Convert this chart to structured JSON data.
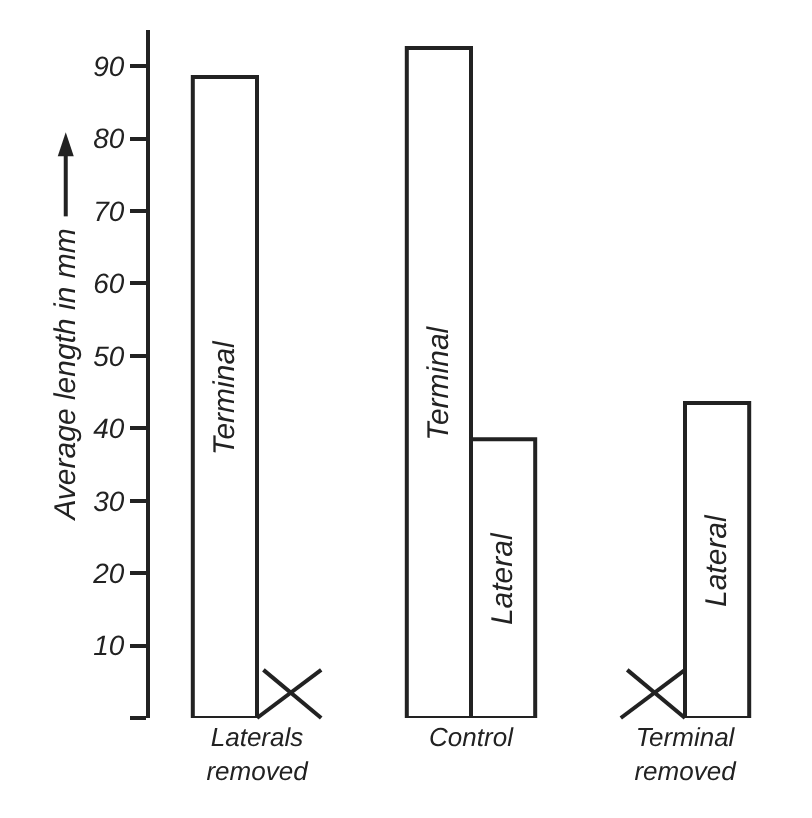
{
  "chart_data": {
    "type": "bar",
    "ylabel": "Average length in mm",
    "categories": [
      "Laterals\nremoved",
      "Control",
      "Terminal\nremoved"
    ],
    "series": [
      {
        "name": "Terminal",
        "color": "#ffffff",
        "values": [
          88.5,
          92.5,
          null
        ]
      },
      {
        "name": "Lateral",
        "color": "#ffffff",
        "values": [
          null,
          38.5,
          43.5
        ]
      }
    ],
    "ylim": [
      0,
      95
    ],
    "yticks": [
      {
        "value": 0,
        "label": null
      },
      10,
      20,
      30,
      40,
      50,
      60,
      70,
      80,
      90
    ],
    "grid": false,
    "legend": false
  }
}
